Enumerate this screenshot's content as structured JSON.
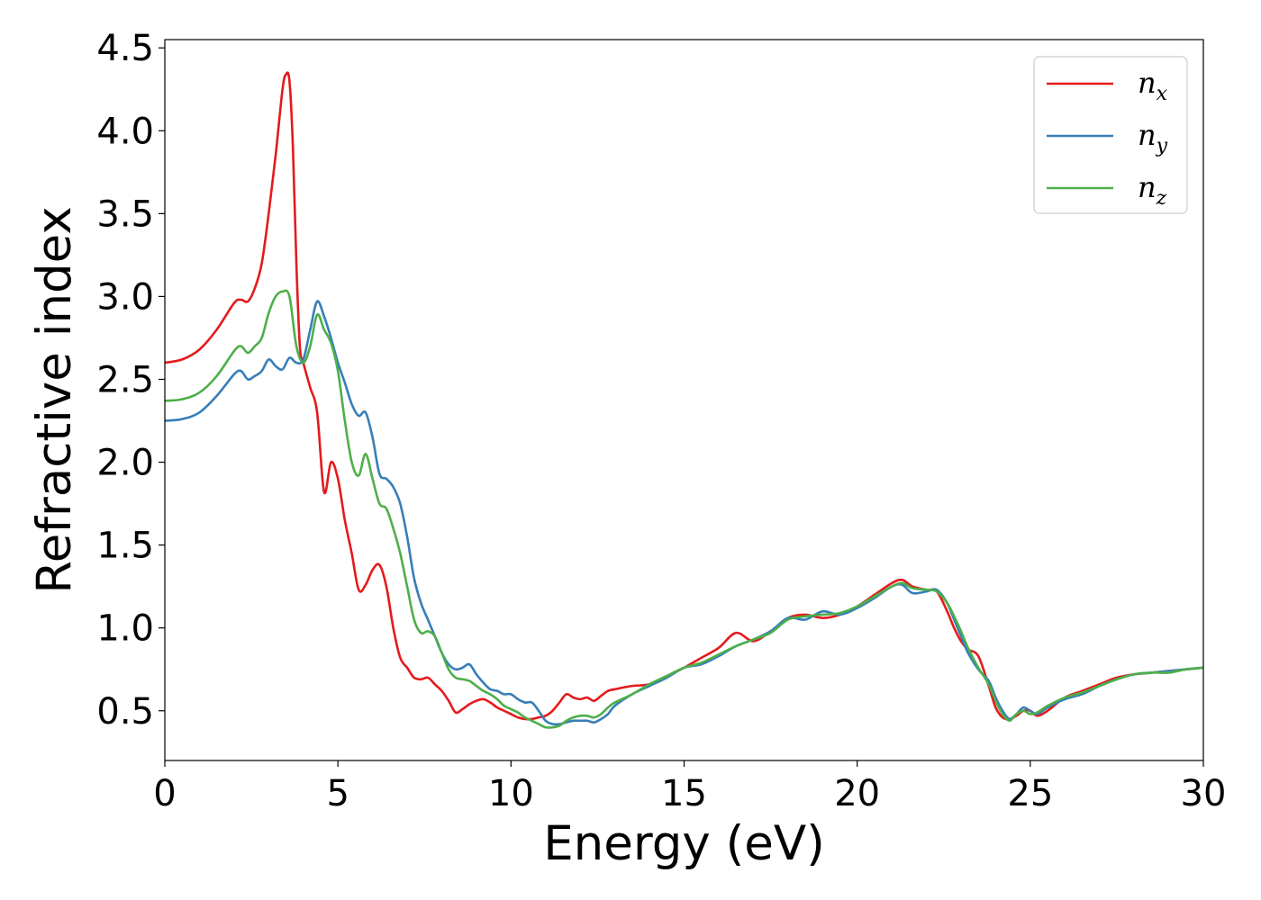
{
  "chart_data": {
    "type": "line",
    "title": "",
    "xlabel": "Energy (eV)",
    "ylabel": "Refractive index",
    "xlim": [
      0,
      30
    ],
    "ylim": [
      0.2,
      4.55
    ],
    "xticks": [
      0,
      5,
      10,
      15,
      20,
      25,
      30
    ],
    "xtick_labels": [
      "0",
      "5",
      "10",
      "15",
      "20",
      "25",
      "30"
    ],
    "yticks": [
      0.5,
      1.0,
      1.5,
      2.0,
      2.5,
      3.0,
      3.5,
      4.0,
      4.5
    ],
    "ytick_labels": [
      "0.5",
      "1.0",
      "1.5",
      "2.0",
      "2.5",
      "3.0",
      "3.5",
      "4.0",
      "4.5"
    ],
    "grid": false,
    "legend_position": "top-right",
    "series": [
      {
        "name": "n_x",
        "label_base": "n",
        "label_sub": "x",
        "color": "#e41a1c",
        "x": [
          0,
          0.5,
          1.0,
          1.5,
          2.0,
          2.2,
          2.4,
          2.6,
          2.8,
          3.0,
          3.2,
          3.4,
          3.5,
          3.6,
          3.7,
          3.8,
          3.9,
          4.0,
          4.2,
          4.4,
          4.6,
          4.8,
          5.0,
          5.2,
          5.4,
          5.6,
          5.8,
          6.0,
          6.2,
          6.4,
          6.6,
          6.8,
          7.0,
          7.2,
          7.4,
          7.6,
          7.8,
          8.0,
          8.2,
          8.4,
          8.6,
          8.8,
          9.0,
          9.2,
          9.4,
          9.6,
          9.8,
          10.0,
          10.2,
          10.4,
          10.6,
          10.8,
          11.0,
          11.2,
          11.4,
          11.6,
          11.8,
          12.0,
          12.2,
          12.4,
          12.6,
          12.8,
          13.0,
          13.5,
          14.0,
          14.5,
          15.0,
          15.5,
          16.0,
          16.5,
          17.0,
          17.5,
          18.0,
          18.5,
          19.0,
          19.5,
          20.0,
          20.5,
          21.0,
          21.3,
          21.6,
          22.0,
          22.3,
          22.6,
          22.8,
          23.0,
          23.2,
          23.5,
          23.8,
          24.0,
          24.2,
          24.4,
          24.6,
          24.8,
          25.0,
          25.2,
          25.5,
          26.0,
          26.5,
          27.0,
          27.5,
          28.0,
          28.5,
          29.0,
          29.5,
          30.0
        ],
        "y": [
          2.6,
          2.62,
          2.68,
          2.8,
          2.96,
          2.98,
          2.97,
          3.05,
          3.2,
          3.5,
          3.85,
          4.25,
          4.34,
          4.3,
          3.9,
          3.2,
          2.7,
          2.6,
          2.45,
          2.3,
          1.82,
          2.0,
          1.9,
          1.65,
          1.45,
          1.23,
          1.26,
          1.35,
          1.38,
          1.25,
          1.0,
          0.82,
          0.76,
          0.7,
          0.69,
          0.7,
          0.66,
          0.62,
          0.56,
          0.49,
          0.51,
          0.54,
          0.56,
          0.57,
          0.55,
          0.52,
          0.5,
          0.48,
          0.46,
          0.45,
          0.45,
          0.46,
          0.47,
          0.5,
          0.55,
          0.6,
          0.58,
          0.57,
          0.58,
          0.56,
          0.59,
          0.62,
          0.63,
          0.65,
          0.66,
          0.71,
          0.76,
          0.82,
          0.88,
          0.97,
          0.92,
          0.98,
          1.06,
          1.08,
          1.06,
          1.08,
          1.13,
          1.2,
          1.27,
          1.29,
          1.25,
          1.23,
          1.22,
          1.1,
          1.0,
          0.92,
          0.87,
          0.83,
          0.65,
          0.52,
          0.46,
          0.45,
          0.47,
          0.5,
          0.5,
          0.47,
          0.5,
          0.58,
          0.62,
          0.66,
          0.7,
          0.72,
          0.73,
          0.74,
          0.75,
          0.76
        ]
      },
      {
        "name": "n_y",
        "label_base": "n",
        "label_sub": "y",
        "color": "#377eb8",
        "x": [
          0,
          0.5,
          1.0,
          1.5,
          2.0,
          2.2,
          2.4,
          2.6,
          2.8,
          3.0,
          3.2,
          3.4,
          3.6,
          3.8,
          4.0,
          4.2,
          4.4,
          4.6,
          4.8,
          5.0,
          5.2,
          5.4,
          5.6,
          5.8,
          6.0,
          6.2,
          6.4,
          6.6,
          6.8,
          7.0,
          7.2,
          7.4,
          7.6,
          7.8,
          8.0,
          8.2,
          8.4,
          8.6,
          8.8,
          9.0,
          9.2,
          9.4,
          9.6,
          9.8,
          10.0,
          10.2,
          10.4,
          10.6,
          10.8,
          11.0,
          11.2,
          11.4,
          11.6,
          11.8,
          12.0,
          12.2,
          12.4,
          12.6,
          12.8,
          13.0,
          13.5,
          14.0,
          14.5,
          15.0,
          15.5,
          16.0,
          16.5,
          17.0,
          17.5,
          18.0,
          18.5,
          19.0,
          19.5,
          20.0,
          20.5,
          21.0,
          21.3,
          21.6,
          22.0,
          22.3,
          22.6,
          22.8,
          23.0,
          23.2,
          23.5,
          23.8,
          24.0,
          24.2,
          24.4,
          24.6,
          24.8,
          25.0,
          25.2,
          25.5,
          26.0,
          26.5,
          27.0,
          27.5,
          28.0,
          28.5,
          29.0,
          29.5,
          30.0
        ],
        "y": [
          2.25,
          2.26,
          2.3,
          2.4,
          2.53,
          2.55,
          2.5,
          2.52,
          2.55,
          2.62,
          2.58,
          2.56,
          2.63,
          2.6,
          2.62,
          2.8,
          2.97,
          2.88,
          2.75,
          2.6,
          2.48,
          2.35,
          2.28,
          2.3,
          2.15,
          1.93,
          1.9,
          1.85,
          1.75,
          1.55,
          1.3,
          1.15,
          1.05,
          0.95,
          0.85,
          0.78,
          0.75,
          0.76,
          0.78,
          0.72,
          0.67,
          0.63,
          0.62,
          0.6,
          0.6,
          0.57,
          0.55,
          0.55,
          0.5,
          0.44,
          0.42,
          0.42,
          0.43,
          0.44,
          0.44,
          0.44,
          0.43,
          0.45,
          0.48,
          0.53,
          0.6,
          0.65,
          0.7,
          0.76,
          0.78,
          0.83,
          0.89,
          0.93,
          0.98,
          1.06,
          1.05,
          1.1,
          1.08,
          1.12,
          1.18,
          1.25,
          1.26,
          1.21,
          1.22,
          1.23,
          1.15,
          1.05,
          0.95,
          0.85,
          0.75,
          0.68,
          0.58,
          0.5,
          0.45,
          0.48,
          0.52,
          0.5,
          0.48,
          0.52,
          0.57,
          0.6,
          0.65,
          0.69,
          0.72,
          0.73,
          0.74,
          0.75,
          0.76
        ]
      },
      {
        "name": "n_z",
        "label_base": "n",
        "label_sub": "z",
        "color": "#4daf4a",
        "x": [
          0,
          0.5,
          1.0,
          1.5,
          2.0,
          2.2,
          2.4,
          2.6,
          2.8,
          3.0,
          3.2,
          3.4,
          3.6,
          3.8,
          4.0,
          4.2,
          4.4,
          4.6,
          4.8,
          5.0,
          5.2,
          5.4,
          5.6,
          5.8,
          6.0,
          6.2,
          6.4,
          6.6,
          6.8,
          7.0,
          7.2,
          7.4,
          7.6,
          7.8,
          8.0,
          8.2,
          8.4,
          8.6,
          8.8,
          9.0,
          9.2,
          9.4,
          9.6,
          9.8,
          10.0,
          10.2,
          10.4,
          10.6,
          10.8,
          11.0,
          11.2,
          11.4,
          11.6,
          11.8,
          12.0,
          12.2,
          12.4,
          12.6,
          12.8,
          13.0,
          13.5,
          14.0,
          14.5,
          15.0,
          15.5,
          16.0,
          16.5,
          17.0,
          17.5,
          18.0,
          18.5,
          19.0,
          19.5,
          20.0,
          20.5,
          21.0,
          21.3,
          21.6,
          22.0,
          22.3,
          22.6,
          22.8,
          23.0,
          23.2,
          23.5,
          23.8,
          24.0,
          24.2,
          24.4,
          24.6,
          24.8,
          25.0,
          25.2,
          25.5,
          26.0,
          26.5,
          27.0,
          27.5,
          28.0,
          28.5,
          29.0,
          29.5,
          30.0
        ],
        "y": [
          2.37,
          2.38,
          2.42,
          2.52,
          2.67,
          2.7,
          2.66,
          2.7,
          2.75,
          2.9,
          3.0,
          3.03,
          3.0,
          2.7,
          2.6,
          2.7,
          2.89,
          2.8,
          2.72,
          2.55,
          2.25,
          2.0,
          1.92,
          2.05,
          1.9,
          1.75,
          1.72,
          1.6,
          1.45,
          1.25,
          1.05,
          0.97,
          0.98,
          0.95,
          0.85,
          0.75,
          0.7,
          0.69,
          0.68,
          0.65,
          0.62,
          0.6,
          0.57,
          0.53,
          0.51,
          0.49,
          0.46,
          0.44,
          0.42,
          0.4,
          0.4,
          0.41,
          0.44,
          0.46,
          0.47,
          0.47,
          0.46,
          0.48,
          0.52,
          0.55,
          0.6,
          0.66,
          0.71,
          0.76,
          0.79,
          0.84,
          0.89,
          0.93,
          0.97,
          1.05,
          1.07,
          1.08,
          1.09,
          1.13,
          1.19,
          1.25,
          1.27,
          1.24,
          1.23,
          1.22,
          1.15,
          1.07,
          0.98,
          0.88,
          0.76,
          0.66,
          0.56,
          0.48,
          0.44,
          0.48,
          0.5,
          0.48,
          0.49,
          0.53,
          0.58,
          0.61,
          0.65,
          0.69,
          0.72,
          0.73,
          0.73,
          0.75,
          0.76
        ]
      }
    ]
  }
}
